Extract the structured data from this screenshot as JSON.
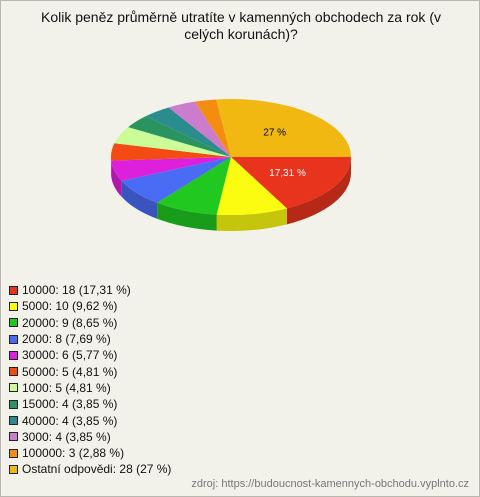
{
  "title": "Kolik peněz průměrně utratíte v kamenných obchodech za rok (v celých korunách)?",
  "chart_data": {
    "type": "pie",
    "categories": [
      "10000: 18 (17,31 %)",
      "5000: 10 (9,62 %)",
      "20000: 9 (8,65 %)",
      "2000: 8 (7,69 %)",
      "30000: 6 (5,77 %)",
      "50000: 5 (4,81 %)",
      "1000: 5 (4,81 %)",
      "15000: 4 (3,85 %)",
      "40000: 4 (3,85 %)",
      "3000: 4 (3,85 %)",
      "100000: 3 (2,88 %)",
      "Ostatní odpovědi: 28 (27 %)"
    ],
    "values": [
      17.31,
      9.62,
      8.65,
      7.69,
      5.77,
      4.81,
      4.81,
      3.85,
      3.85,
      3.85,
      2.88,
      27
    ],
    "value_labels": [
      "17,31 %",
      null,
      null,
      null,
      null,
      null,
      null,
      null,
      null,
      null,
      null,
      "27 %"
    ],
    "colors": [
      "#e8341c",
      "#fcfc10",
      "#20c820",
      "#4a6cf4",
      "#dc20dc",
      "#f44a14",
      "#ccfc98",
      "#2a9460",
      "#2a8c8c",
      "#cc7ccc",
      "#f48c10",
      "#f0b810"
    ]
  },
  "source": "zdroj: https://budoucnost-kamennych-obchodu.vyplnto.cz"
}
